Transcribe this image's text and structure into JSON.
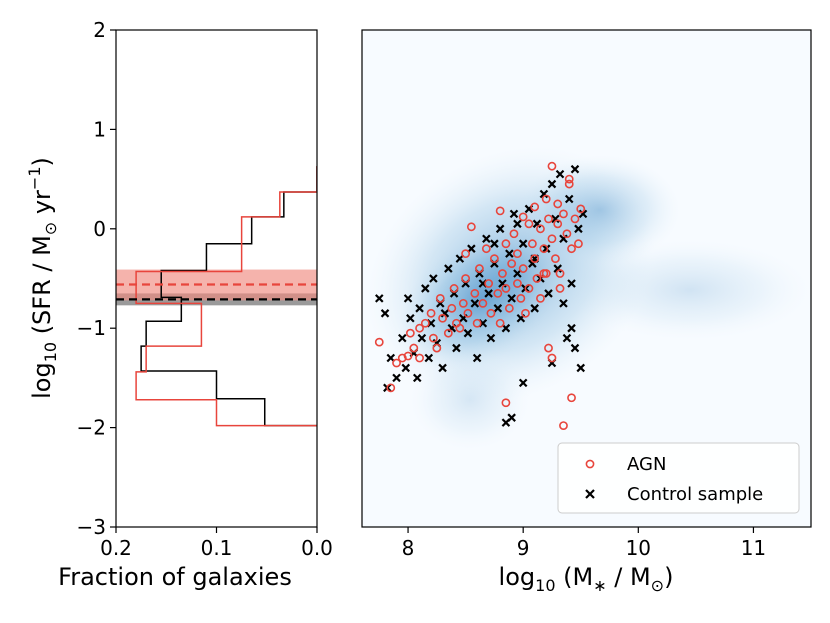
{
  "chart_data": [
    {
      "type": "histogram-horizontal",
      "panel": "left",
      "ylabel": "log10 (SFR / M⊙ yr⁻¹)",
      "xlabel": "Fraction of galaxies",
      "xlim": [
        0.2,
        0.0
      ],
      "ylim": [
        -3,
        2
      ],
      "x_ticks": [
        {
          "v": 0.2,
          "label": "0.2"
        },
        {
          "v": 0.1,
          "label": "0.1"
        },
        {
          "v": 0.0,
          "label": "0.0"
        }
      ],
      "y_ticks": [
        {
          "v": 2,
          "label": "2"
        },
        {
          "v": 1,
          "label": "1"
        },
        {
          "v": 0,
          "label": "0"
        },
        {
          "v": -1,
          "label": "−1"
        },
        {
          "v": -2,
          "label": "−2"
        },
        {
          "v": -3,
          "label": "−3"
        }
      ],
      "series": [
        {
          "name": "AGN",
          "color": "#e8453c",
          "median": -0.56,
          "band": [
            -0.72,
            -0.41
          ],
          "steps": [
            {
              "y": 0.63,
              "f": 0.0
            },
            {
              "y": 0.37,
              "f": 0.037
            },
            {
              "y": 0.12,
              "f": 0.075
            },
            {
              "y": -0.43,
              "f": 0.18
            },
            {
              "y": -0.75,
              "f": 0.115
            },
            {
              "y": -1.18,
              "f": 0.17
            },
            {
              "y": -1.44,
              "f": 0.18
            },
            {
              "y": -1.72,
              "f": 0.1
            },
            {
              "y": -1.98,
              "f": 0.038
            }
          ],
          "end_y": -1.98
        },
        {
          "name": "Control sample",
          "color": "#000000",
          "median": -0.71,
          "band": [
            -0.77,
            -0.65
          ],
          "steps": [
            {
              "y": 0.63,
              "f": 0.0
            },
            {
              "y": 0.37,
              "f": 0.033
            },
            {
              "y": 0.12,
              "f": 0.065
            },
            {
              "y": -0.15,
              "f": 0.11
            },
            {
              "y": -0.42,
              "f": 0.155
            },
            {
              "y": -0.69,
              "f": 0.135
            },
            {
              "y": -0.93,
              "f": 0.17
            },
            {
              "y": -1.18,
              "f": 0.175
            },
            {
              "y": -1.43,
              "f": 0.1
            },
            {
              "y": -1.71,
              "f": 0.052
            },
            {
              "y": -1.98,
              "f": 0.016
            }
          ],
          "end_y": -1.98
        }
      ]
    },
    {
      "type": "scatter",
      "panel": "right",
      "xlabel": "log10 (M* / M⊙)",
      "xlim": [
        7.6,
        11.5
      ],
      "ylim": [
        -3,
        2
      ],
      "x_ticks": [
        {
          "v": 8,
          "label": "8"
        },
        {
          "v": 9,
          "label": "9"
        },
        {
          "v": 10,
          "label": "10"
        },
        {
          "v": 11,
          "label": "11"
        }
      ],
      "legend_position": "lower-right",
      "background": "2D density histogram (blue) of galaxy population",
      "series": [
        {
          "name": "AGN",
          "marker": "open-circle",
          "color": "#e8453c",
          "points": [
            [
              7.75,
              -1.14
            ],
            [
              7.85,
              -1.6
            ],
            [
              7.9,
              -1.35
            ],
            [
              7.95,
              -1.3
            ],
            [
              8.0,
              -1.28
            ],
            [
              8.02,
              -1.05
            ],
            [
              8.05,
              -1.2
            ],
            [
              8.1,
              -1.0
            ],
            [
              8.1,
              -1.3
            ],
            [
              8.15,
              -0.95
            ],
            [
              8.2,
              -0.85
            ],
            [
              8.22,
              -1.1
            ],
            [
              8.25,
              -1.2
            ],
            [
              8.28,
              -0.7
            ],
            [
              8.3,
              -0.9
            ],
            [
              8.35,
              -1.05
            ],
            [
              8.38,
              -0.8
            ],
            [
              8.4,
              -0.6
            ],
            [
              8.42,
              -0.95
            ],
            [
              8.45,
              -1.0
            ],
            [
              8.48,
              -0.75
            ],
            [
              8.5,
              -0.5
            ],
            [
              8.5,
              -0.25
            ],
            [
              8.52,
              -0.85
            ],
            [
              8.55,
              0.02
            ],
            [
              8.58,
              -0.65
            ],
            [
              8.6,
              -0.95
            ],
            [
              8.62,
              -0.4
            ],
            [
              8.65,
              -0.75
            ],
            [
              8.68,
              -0.2
            ],
            [
              8.7,
              -0.55
            ],
            [
              8.72,
              -0.85
            ],
            [
              8.75,
              -0.3
            ],
            [
              8.78,
              -0.65
            ],
            [
              8.8,
              0.18
            ],
            [
              8.8,
              -0.95
            ],
            [
              8.82,
              -0.45
            ],
            [
              8.85,
              -0.15
            ],
            [
              8.85,
              -0.6
            ],
            [
              8.88,
              -0.8
            ],
            [
              8.9,
              -0.35
            ],
            [
              8.92,
              -0.05
            ],
            [
              8.95,
              -0.55
            ],
            [
              8.95,
              -0.25
            ],
            [
              8.98,
              -0.7
            ],
            [
              9.0,
              0.12
            ],
            [
              9.0,
              -0.4
            ],
            [
              9.02,
              -0.85
            ],
            [
              9.05,
              0.05
            ],
            [
              9.05,
              -0.6
            ],
            [
              9.08,
              -0.15
            ],
            [
              9.1,
              0.22
            ],
            [
              9.1,
              -0.3
            ],
            [
              9.12,
              -0.5
            ],
            [
              9.15,
              0.0
            ],
            [
              9.15,
              -0.7
            ],
            [
              9.18,
              -0.2
            ],
            [
              9.2,
              0.3
            ],
            [
              9.2,
              -0.45
            ],
            [
              9.22,
              0.1
            ],
            [
              9.25,
              0.63
            ],
            [
              9.25,
              -0.1
            ],
            [
              9.28,
              -0.3
            ],
            [
              9.3,
              0.25
            ],
            [
              9.3,
              0.05
            ],
            [
              9.32,
              -0.6
            ],
            [
              9.35,
              0.15
            ],
            [
              9.38,
              -0.05
            ],
            [
              9.4,
              0.45
            ],
            [
              9.42,
              -0.2
            ],
            [
              9.45,
              0.1
            ],
            [
              9.48,
              -0.15
            ],
            [
              9.5,
              0.2
            ],
            [
              8.85,
              -1.75
            ],
            [
              9.35,
              -1.98
            ],
            [
              9.42,
              -1.7
            ],
            [
              9.22,
              -1.2
            ],
            [
              9.25,
              -1.3
            ],
            [
              9.18,
              -0.45
            ],
            [
              9.32,
              -0.45
            ],
            [
              9.4,
              0.5
            ]
          ]
        },
        {
          "name": "Control sample",
          "marker": "x",
          "color": "#000000",
          "points": [
            [
              7.75,
              -0.7
            ],
            [
              7.8,
              -0.85
            ],
            [
              7.82,
              -1.6
            ],
            [
              7.85,
              -1.3
            ],
            [
              7.9,
              -1.5
            ],
            [
              7.95,
              -1.1
            ],
            [
              7.98,
              -1.4
            ],
            [
              8.0,
              -0.7
            ],
            [
              8.02,
              -0.9
            ],
            [
              8.05,
              -1.25
            ],
            [
              8.08,
              -1.5
            ],
            [
              8.1,
              -0.8
            ],
            [
              8.12,
              -1.1
            ],
            [
              8.15,
              -0.6
            ],
            [
              8.18,
              -1.3
            ],
            [
              8.2,
              -0.95
            ],
            [
              8.22,
              -0.5
            ],
            [
              8.25,
              -1.15
            ],
            [
              8.28,
              -0.75
            ],
            [
              8.3,
              -1.4
            ],
            [
              8.32,
              -0.85
            ],
            [
              8.35,
              -0.4
            ],
            [
              8.38,
              -1.0
            ],
            [
              8.4,
              -0.65
            ],
            [
              8.42,
              -1.2
            ],
            [
              8.45,
              -0.3
            ],
            [
              8.48,
              -0.9
            ],
            [
              8.5,
              -0.55
            ],
            [
              8.52,
              -1.05
            ],
            [
              8.55,
              -0.2
            ],
            [
              8.58,
              -0.75
            ],
            [
              8.6,
              -1.3
            ],
            [
              8.62,
              -0.45
            ],
            [
              8.65,
              -0.95
            ],
            [
              8.68,
              -0.1
            ],
            [
              8.7,
              -0.65
            ],
            [
              8.72,
              -1.1
            ],
            [
              8.75,
              -0.35
            ],
            [
              8.78,
              -0.8
            ],
            [
              8.8,
              0.0
            ],
            [
              8.82,
              -0.55
            ],
            [
              8.85,
              -1.0
            ],
            [
              8.85,
              -1.95
            ],
            [
              8.88,
              -0.25
            ],
            [
              8.9,
              -0.7
            ],
            [
              8.9,
              -1.9
            ],
            [
              8.92,
              0.15
            ],
            [
              8.95,
              -0.45
            ],
            [
              8.98,
              -0.9
            ],
            [
              9.0,
              -0.15
            ],
            [
              9.0,
              -1.55
            ],
            [
              9.02,
              -0.6
            ],
            [
              9.05,
              0.2
            ],
            [
              9.08,
              -0.35
            ],
            [
              9.1,
              -0.8
            ],
            [
              9.12,
              0.05
            ],
            [
              9.15,
              -0.5
            ],
            [
              9.18,
              0.35
            ],
            [
              9.2,
              -0.2
            ],
            [
              9.22,
              -0.65
            ],
            [
              9.25,
              0.45
            ],
            [
              9.25,
              -1.35
            ],
            [
              9.28,
              0.1
            ],
            [
              9.3,
              -0.4
            ],
            [
              9.32,
              0.55
            ],
            [
              9.35,
              -0.1
            ],
            [
              9.38,
              -1.1
            ],
            [
              9.4,
              0.3
            ],
            [
              9.42,
              -0.55
            ],
            [
              9.45,
              0.6
            ],
            [
              9.45,
              -1.2
            ],
            [
              9.48,
              0.0
            ],
            [
              9.5,
              -1.4
            ],
            [
              9.52,
              0.15
            ],
            [
              8.65,
              -0.55
            ],
            [
              8.75,
              -0.15
            ],
            [
              8.95,
              0.05
            ],
            [
              9.1,
              -0.3
            ],
            [
              9.35,
              -0.75
            ],
            [
              9.42,
              -1.0
            ]
          ]
        }
      ]
    }
  ],
  "legend": {
    "agn_label": "AGN",
    "control_label": "Control sample"
  },
  "colors": {
    "agn": "#e8453c",
    "control": "#000000",
    "density": "#2f7fbf"
  }
}
